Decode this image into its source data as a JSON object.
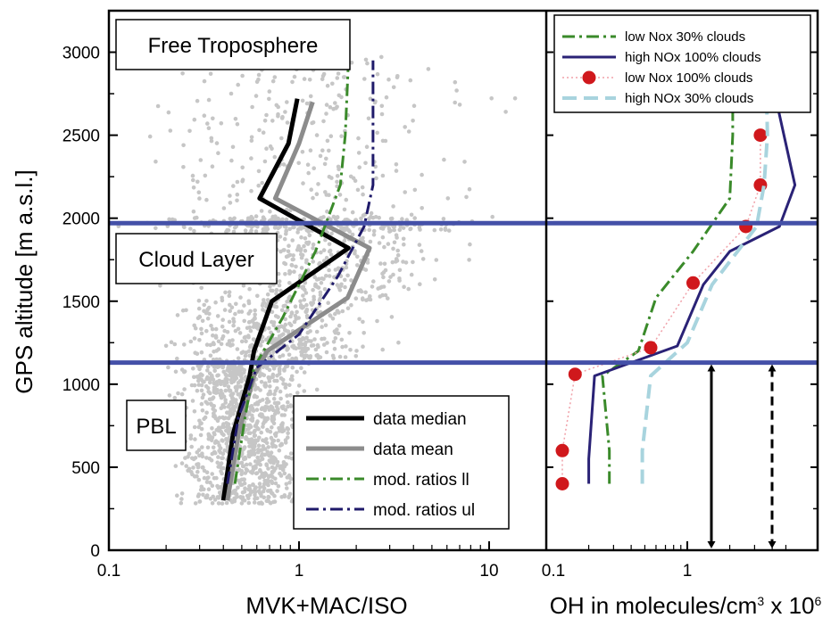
{
  "chart_data": [
    {
      "type": "line",
      "panel": "left",
      "xlabel": "MVK+MAC/ISO",
      "ylabel": "GPS altitude [m a.s.l.]",
      "xscale": "log",
      "xlim": [
        0.1,
        30
      ],
      "ylim": [
        0,
        3250
      ],
      "xticks": [
        0.1,
        1,
        10
      ],
      "xtick_labels": [
        "0.1",
        "1",
        "10"
      ],
      "yticks": [
        0,
        500,
        1000,
        1500,
        2000,
        2500,
        3000
      ],
      "ytick_labels": [
        "0",
        "500",
        "1000",
        "1500",
        "2000",
        "2500",
        "3000"
      ],
      "grid": false,
      "legend_position": "bottom-right",
      "layer_boundaries": [
        1130,
        1970
      ],
      "region_labels": [
        "Free Troposphere",
        "Cloud Layer",
        "PBL"
      ],
      "series": [
        {
          "name": "data median",
          "color": "#000000",
          "style": "solid",
          "points": [
            [
              0.4,
              300
            ],
            [
              0.45,
              700
            ],
            [
              0.55,
              1050
            ],
            [
              0.58,
              1200
            ],
            [
              0.72,
              1500
            ],
            [
              1.82,
              1820
            ],
            [
              0.62,
              2120
            ],
            [
              0.88,
              2450
            ],
            [
              0.98,
              2720
            ]
          ]
        },
        {
          "name": "data mean",
          "color": "#8c8c8c",
          "style": "solid",
          "points": [
            [
              0.42,
              300
            ],
            [
              0.48,
              700
            ],
            [
              0.58,
              1050
            ],
            [
              0.68,
              1200
            ],
            [
              1.8,
              1520
            ],
            [
              2.35,
              1820
            ],
            [
              0.75,
              2120
            ],
            [
              1.0,
              2450
            ],
            [
              1.18,
              2700
            ]
          ]
        },
        {
          "name": "mod. ratios ll",
          "color": "#3a8a2a",
          "style": "dash-dot",
          "points": [
            [
              0.46,
              400
            ],
            [
              0.52,
              800
            ],
            [
              0.58,
              1100
            ],
            [
              0.82,
              1400
            ],
            [
              1.22,
              1800
            ],
            [
              1.65,
              2200
            ],
            [
              1.75,
              2500
            ],
            [
              1.82,
              2950
            ]
          ]
        },
        {
          "name": "mod. ratios ul",
          "color": "#1f1a6a",
          "style": "dash-dot",
          "points": [
            [
              0.42,
              400
            ],
            [
              0.48,
              800
            ],
            [
              0.6,
              1100
            ],
            [
              1.0,
              1300
            ],
            [
              1.6,
              1650
            ],
            [
              2.2,
              1950
            ],
            [
              2.45,
              2200
            ],
            [
              2.45,
              2500
            ],
            [
              2.45,
              2950
            ]
          ]
        }
      ]
    },
    {
      "type": "line",
      "panel": "right",
      "xlabel": "OH in molecules/cm",
      "xlabel_sup1": "3",
      "xlabel_mid": " x 10",
      "xlabel_sup2": "6",
      "xscale": "log",
      "xlim": [
        0.1,
        6
      ],
      "ylim": [
        0,
        3250
      ],
      "xticks": [
        0.1,
        1
      ],
      "xtick_labels": [
        "0.1",
        "1"
      ],
      "grid": false,
      "legend_position": "top",
      "layer_boundaries": [
        1130,
        1970
      ],
      "arrows_range": [
        0,
        1130
      ],
      "series": [
        {
          "name": "low Nox 30% clouds",
          "color": "#3a8a2a",
          "style": "dash-dot",
          "points": [
            [
              0.28,
              400
            ],
            [
              0.28,
              600
            ],
            [
              0.25,
              1050
            ],
            [
              0.45,
              1200
            ],
            [
              0.6,
              1520
            ],
            [
              1.1,
              1800
            ],
            [
              2.0,
              2120
            ],
            [
              2.1,
              2500
            ],
            [
              2.1,
              2950
            ]
          ]
        },
        {
          "name": "high NOx 100% clouds",
          "color": "#2a2276",
          "style": "solid",
          "points": [
            [
              0.2,
              400
            ],
            [
              0.2,
              550
            ],
            [
              0.22,
              1050
            ],
            [
              0.85,
              1230
            ],
            [
              1.3,
              1600
            ],
            [
              2.0,
              1800
            ],
            [
              4.5,
              1950
            ],
            [
              5.8,
              2200
            ],
            [
              4.3,
              2700
            ],
            [
              4.0,
              2950
            ]
          ]
        },
        {
          "name": "low Nox 100% clouds",
          "color": "#d0181c",
          "style": "dotted-markers",
          "points": [
            [
              0.13,
              400
            ],
            [
              0.13,
              600
            ],
            [
              0.16,
              1060
            ],
            [
              0.55,
              1220
            ],
            [
              1.1,
              1610
            ],
            [
              2.6,
              1950
            ],
            [
              3.3,
              2200
            ],
            [
              3.3,
              2500
            ]
          ]
        },
        {
          "name": "high NOx 30% clouds",
          "color": "#a8d4de",
          "style": "dashed",
          "points": [
            [
              0.48,
              400
            ],
            [
              0.48,
              600
            ],
            [
              0.55,
              1050
            ],
            [
              1.0,
              1250
            ],
            [
              1.5,
              1600
            ],
            [
              3.1,
              1950
            ],
            [
              3.5,
              2200
            ],
            [
              3.7,
              2500
            ],
            [
              3.6,
              2950
            ]
          ]
        }
      ]
    }
  ]
}
